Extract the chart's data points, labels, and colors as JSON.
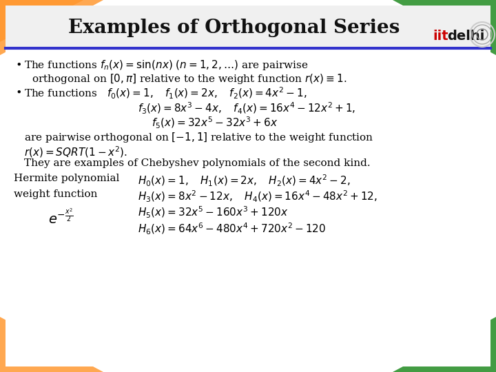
{
  "title": "Examples of Orthogonal Series",
  "title_fontsize": 20,
  "background_color": "#ffffff",
  "header_bg": "#f5f5f5",
  "border_color": "#3333aa",
  "text_color": "#000000",
  "iitd_color_iit": "#cc0000",
  "iitd_color_delhi": "#000000",
  "corner_colors": {
    "top_left": "#ff9933",
    "top_right": "#228b22",
    "bottom_left": "#ff9933",
    "bottom_right": "#228b22"
  },
  "bullet1_text": "The functions ",
  "bullet1_italic": "$f_n(x) = \\sin(nx)$  $(n = 1, 2, \\ldots)$",
  "bullet1_rest": " are pairwise\n    orthogonal on $[0, \\pi]$ relative to the weight function $r(x) \\equiv 1$.",
  "bullet2_prefix": "The functions",
  "chebyshev_line1": "$f_0(x)=1, \\quad f_1(x)=2x, \\quad f_2(x)=4x^2-1,$",
  "chebyshev_line2": "$f_3(x)=8x^3-4x, \\quad f_4(x)=16x^4-12x^2+1,$",
  "chebyshev_line3": "$f_5(x)=32x^5-32x^3+6x$",
  "cheb_desc1": "are pairwise orthogonal on $[-1, 1]$ relative to the weight function",
  "cheb_desc2": "$r(x) = SQRT(1-x^2)$.",
  "cheb_desc3": "They are examples of Chebyshev polynomials of the second kind.",
  "hermite_label": "Hermite polynomial",
  "weight_label": "weight function",
  "weight_formula": "$e^{-\\dfrac{x^2}{2}}$",
  "hermite_line1": "$H_0(x)=1, \\quad H_1(x)=2x, \\quad H_2(x)=4x^2-2,$",
  "hermite_line2": "$H_3(x)=8x^2-12x, \\quad H_4(x)=16x^4-48x^2+12,$",
  "hermite_line3": "$H_5(x)=32x^5-160x^3+120x$",
  "hermite_line4": "$H_6(x)=64x^6-480x^4+720x^2-120$"
}
